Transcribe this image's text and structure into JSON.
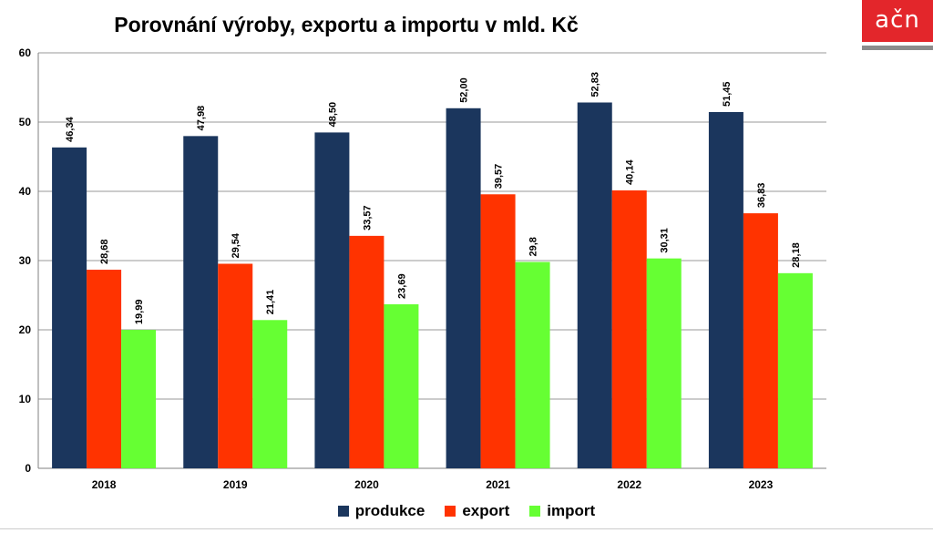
{
  "logo": {
    "text": "ačn",
    "color": "#e3262b"
  },
  "chart_data": {
    "type": "bar",
    "title": "Porovnání výroby, exportu a importu v mld. Kč",
    "categories": [
      "2018",
      "2019",
      "2020",
      "2021",
      "2022",
      "2023"
    ],
    "series": [
      {
        "name": "produkce",
        "color": "#1b365d",
        "values": [
          46.34,
          47.98,
          48.5,
          52.0,
          52.83,
          51.45
        ],
        "labels": [
          "46,34",
          "47,98",
          "48,50",
          "52,00",
          "52,83",
          "51,45"
        ]
      },
      {
        "name": "export",
        "color": "#ff3300",
        "values": [
          28.68,
          29.54,
          33.57,
          39.57,
          40.14,
          36.83
        ],
        "labels": [
          "28,68",
          "29,54",
          "33,57",
          "39,57",
          "40,14",
          "36,83"
        ]
      },
      {
        "name": "import",
        "color": "#66ff33",
        "values": [
          19.99,
          21.41,
          23.69,
          29.8,
          30.31,
          28.18
        ],
        "labels": [
          "19,99",
          "21,41",
          "23,69",
          "29,8",
          "30,31",
          "28,18"
        ]
      }
    ],
    "ylim": [
      0,
      60
    ],
    "yticks": [
      0,
      10,
      20,
      30,
      40,
      50,
      60
    ],
    "grid": true,
    "legend": "bottom"
  }
}
